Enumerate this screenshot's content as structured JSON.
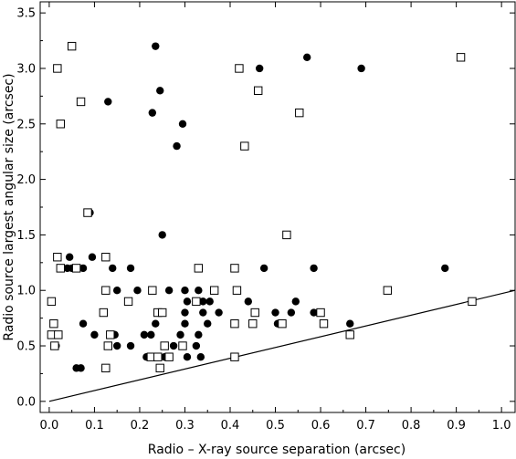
{
  "chart_data": {
    "type": "scatter",
    "xlabel": "Radio – X-ray source separation (arcsec)",
    "ylabel": "Radio source largest angular size (arcsec)",
    "xlim": [
      -0.02,
      1.03
    ],
    "ylim": [
      -0.1,
      3.6
    ],
    "xticks": [
      "0.0",
      "0.1",
      "0.2",
      "0.3",
      "0.4",
      "0.5",
      "0.6",
      "0.7",
      "0.8",
      "0.9",
      "1.0"
    ],
    "yticks": [
      "0.0",
      "0.5",
      "1.0",
      "1.5",
      "2.0",
      "2.5",
      "3.0",
      "3.5"
    ],
    "grid": false,
    "series": [
      {
        "marker": "filled-circle",
        "color": "#000000",
        "points": [
          [
            0.235,
            3.2
          ],
          [
            0.245,
            2.8
          ],
          [
            0.13,
            2.7
          ],
          [
            0.228,
            2.6
          ],
          [
            0.295,
            2.5
          ],
          [
            0.282,
            2.3
          ],
          [
            0.465,
            3.0
          ],
          [
            0.57,
            3.1
          ],
          [
            0.69,
            3.0
          ],
          [
            0.09,
            1.7
          ],
          [
            0.25,
            1.5
          ],
          [
            0.045,
            1.3
          ],
          [
            0.095,
            1.3
          ],
          [
            0.04,
            1.2
          ],
          [
            0.05,
            1.2
          ],
          [
            0.065,
            1.2
          ],
          [
            0.075,
            1.2
          ],
          [
            0.14,
            1.2
          ],
          [
            0.18,
            1.2
          ],
          [
            0.475,
            1.2
          ],
          [
            0.585,
            1.2
          ],
          [
            0.875,
            1.2
          ],
          [
            0.15,
            1.0
          ],
          [
            0.195,
            1.0
          ],
          [
            0.265,
            1.0
          ],
          [
            0.3,
            1.0
          ],
          [
            0.33,
            1.0
          ],
          [
            0.305,
            0.9
          ],
          [
            0.34,
            0.9
          ],
          [
            0.355,
            0.9
          ],
          [
            0.44,
            0.9
          ],
          [
            0.545,
            0.9
          ],
          [
            0.3,
            0.8
          ],
          [
            0.34,
            0.8
          ],
          [
            0.375,
            0.8
          ],
          [
            0.5,
            0.8
          ],
          [
            0.535,
            0.8
          ],
          [
            0.585,
            0.8
          ],
          [
            0.075,
            0.7
          ],
          [
            0.235,
            0.7
          ],
          [
            0.3,
            0.7
          ],
          [
            0.35,
            0.7
          ],
          [
            0.505,
            0.7
          ],
          [
            0.51,
            0.7
          ],
          [
            0.665,
            0.7
          ],
          [
            0.1,
            0.6
          ],
          [
            0.145,
            0.6
          ],
          [
            0.21,
            0.6
          ],
          [
            0.225,
            0.6
          ],
          [
            0.29,
            0.6
          ],
          [
            0.33,
            0.6
          ],
          [
            0.015,
            0.5
          ],
          [
            0.15,
            0.5
          ],
          [
            0.18,
            0.5
          ],
          [
            0.275,
            0.5
          ],
          [
            0.325,
            0.5
          ],
          [
            0.215,
            0.4
          ],
          [
            0.225,
            0.4
          ],
          [
            0.255,
            0.4
          ],
          [
            0.305,
            0.4
          ],
          [
            0.335,
            0.4
          ],
          [
            0.06,
            0.3
          ],
          [
            0.07,
            0.3
          ]
        ]
      },
      {
        "marker": "open-square",
        "color": "#000000",
        "points": [
          [
            0.05,
            3.2
          ],
          [
            0.018,
            3.0
          ],
          [
            0.07,
            2.7
          ],
          [
            0.025,
            2.5
          ],
          [
            0.42,
            3.0
          ],
          [
            0.462,
            2.8
          ],
          [
            0.553,
            2.6
          ],
          [
            0.432,
            2.3
          ],
          [
            0.91,
            3.1
          ],
          [
            0.085,
            1.7
          ],
          [
            0.525,
            1.5
          ],
          [
            0.018,
            1.3
          ],
          [
            0.125,
            1.3
          ],
          [
            0.025,
            1.2
          ],
          [
            0.06,
            1.2
          ],
          [
            0.33,
            1.2
          ],
          [
            0.41,
            1.2
          ],
          [
            0.125,
            1.0
          ],
          [
            0.228,
            1.0
          ],
          [
            0.365,
            1.0
          ],
          [
            0.415,
            1.0
          ],
          [
            0.748,
            1.0
          ],
          [
            0.005,
            0.9
          ],
          [
            0.175,
            0.9
          ],
          [
            0.325,
            0.9
          ],
          [
            0.935,
            0.9
          ],
          [
            0.12,
            0.8
          ],
          [
            0.24,
            0.8
          ],
          [
            0.25,
            0.8
          ],
          [
            0.455,
            0.8
          ],
          [
            0.6,
            0.8
          ],
          [
            0.01,
            0.7
          ],
          [
            0.41,
            0.7
          ],
          [
            0.45,
            0.7
          ],
          [
            0.515,
            0.7
          ],
          [
            0.607,
            0.7
          ],
          [
            0.005,
            0.6
          ],
          [
            0.02,
            0.6
          ],
          [
            0.135,
            0.6
          ],
          [
            0.665,
            0.6
          ],
          [
            0.012,
            0.5
          ],
          [
            0.13,
            0.5
          ],
          [
            0.255,
            0.5
          ],
          [
            0.295,
            0.5
          ],
          [
            0.225,
            0.4
          ],
          [
            0.24,
            0.4
          ],
          [
            0.265,
            0.4
          ],
          [
            0.41,
            0.4
          ],
          [
            0.125,
            0.3
          ],
          [
            0.245,
            0.3
          ]
        ]
      }
    ],
    "reference_line": {
      "from": [
        0.0,
        0.0
      ],
      "to": [
        1.03,
        1.0
      ]
    }
  }
}
